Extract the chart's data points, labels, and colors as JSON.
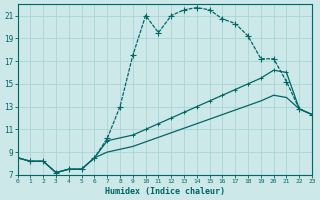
{
  "xlabel": "Humidex (Indice chaleur)",
  "bg_color": "#cce8e8",
  "grid_color": "#aad4d4",
  "line_color": "#006666",
  "xlim": [
    0,
    23
  ],
  "ylim": [
    7,
    22
  ],
  "yticks": [
    7,
    9,
    11,
    13,
    15,
    17,
    19,
    21
  ],
  "xticks": [
    0,
    1,
    2,
    3,
    4,
    5,
    6,
    7,
    8,
    9,
    10,
    11,
    12,
    13,
    14,
    15,
    16,
    17,
    18,
    19,
    20,
    21,
    22,
    23
  ],
  "line1_x": [
    0,
    1,
    2,
    3,
    4,
    5,
    6,
    7,
    8,
    9,
    10,
    11,
    12,
    13,
    14,
    15,
    16,
    17,
    18,
    19,
    20,
    21,
    22,
    23
  ],
  "line1_y": [
    8.5,
    8.2,
    8.2,
    7.2,
    7.5,
    7.5,
    8.5,
    10.2,
    13.0,
    17.5,
    21.0,
    19.5,
    21.0,
    21.5,
    21.7,
    21.5,
    20.7,
    20.3,
    19.2,
    17.2,
    17.2,
    15.2,
    12.8,
    12.3
  ],
  "line2_x": [
    0,
    1,
    2,
    3,
    4,
    5,
    6,
    7,
    9,
    10,
    11,
    12,
    13,
    14,
    15,
    16,
    17,
    18,
    19,
    20,
    21,
    22,
    23
  ],
  "line2_y": [
    8.5,
    8.2,
    8.2,
    7.2,
    7.5,
    7.5,
    8.5,
    10.0,
    10.5,
    11.0,
    11.5,
    12.0,
    12.5,
    13.0,
    13.5,
    14.0,
    14.5,
    15.0,
    15.5,
    16.2,
    16.0,
    12.8,
    12.3
  ],
  "line3_x": [
    0,
    1,
    2,
    3,
    4,
    5,
    6,
    7,
    9,
    10,
    11,
    12,
    13,
    14,
    15,
    16,
    17,
    18,
    19,
    20,
    21,
    22,
    23
  ],
  "line3_y": [
    8.5,
    8.2,
    8.2,
    7.2,
    7.5,
    7.5,
    8.5,
    9.0,
    9.5,
    9.9,
    10.3,
    10.7,
    11.1,
    11.5,
    11.9,
    12.3,
    12.7,
    13.1,
    13.5,
    14.0,
    13.8,
    12.8,
    12.3
  ]
}
